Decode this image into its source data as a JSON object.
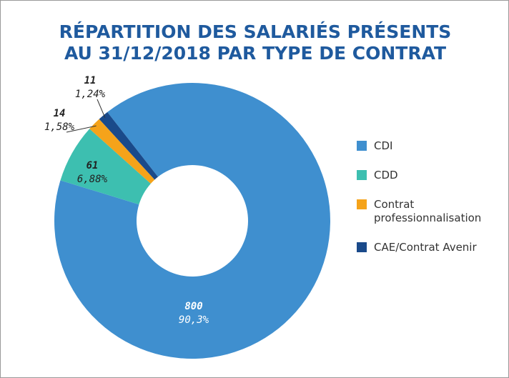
{
  "chart_data": {
    "type": "donut",
    "title": [
      "RÉPARTITION DES SALARIÉS PRÉSENTS",
      "AU 31/12/2018 PAR TYPE DE CONTRAT"
    ],
    "categories": [
      "CDI",
      "CDD",
      "Contrat professionnalisation",
      "CAE/Contrat Avenir"
    ],
    "values": [
      800,
      61,
      14,
      11
    ],
    "percentages": [
      90.3,
      6.88,
      1.58,
      1.24
    ],
    "percentage_labels": [
      "90,3%",
      "6,88%",
      "1,58%",
      "1,24%"
    ],
    "colors": [
      "#3f8fcf",
      "#3dbfb0",
      "#f5a31a",
      "#1a4a8a"
    ],
    "legend": "right"
  }
}
